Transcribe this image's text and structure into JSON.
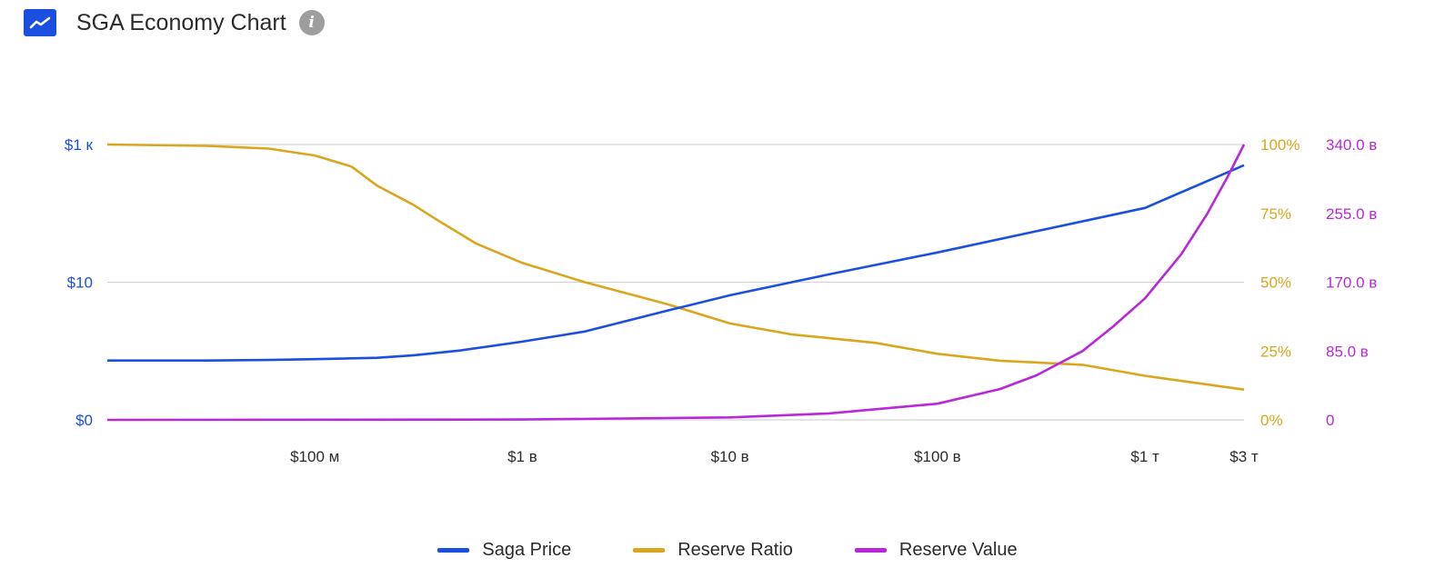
{
  "header": {
    "title": "SGA Economy Chart",
    "icon": "line-chart-icon",
    "info_icon": "info-icon",
    "info_glyph": "i"
  },
  "colors": {
    "price": "#1a4fe0",
    "ratio": "#d9a61d",
    "value": "#b828d8",
    "grid": "#d4d4d4"
  },
  "chart_data": {
    "type": "line",
    "title": "SGA Economy Chart",
    "x_axis": {
      "scale": "log",
      "unit": "USD market cap",
      "range": [
        10000000,
        3000000000000
      ],
      "tick_values": [
        100000000,
        1000000000,
        10000000000,
        100000000000,
        1000000000000,
        3000000000000
      ],
      "tick_labels": [
        "$100 м",
        "$1 в",
        "$10 в",
        "$100 в",
        "$1 т",
        "$3 т"
      ]
    },
    "y_axes": [
      {
        "id": "price",
        "side": "left",
        "scale": "log",
        "tick_values": [
          0,
          10,
          1000
        ],
        "tick_labels": [
          "$0",
          "$10",
          "$1 к"
        ],
        "color": "#1a4fe0"
      },
      {
        "id": "ratio",
        "side": "right",
        "range": [
          0,
          100
        ],
        "tick_values": [
          0,
          25,
          50,
          75,
          100
        ],
        "tick_labels": [
          "0%",
          "25%",
          "50%",
          "75%",
          "100%"
        ],
        "color": "#d9a61d"
      },
      {
        "id": "value",
        "side": "right",
        "range": [
          0,
          340000000000
        ],
        "tick_values": [
          0,
          85000000000,
          170000000000,
          255000000000,
          340000000000
        ],
        "tick_labels": [
          "0",
          "85.0 в",
          "170.0 в",
          "255.0 в",
          "340.0 в"
        ],
        "color": "#b828d8"
      }
    ],
    "grid": true,
    "legend_position": "bottom",
    "series": [
      {
        "name": "Saga Price",
        "axis": "price",
        "color": "#1a4fe0",
        "x": [
          10000000,
          30000000,
          60000000,
          100000000,
          200000000,
          300000000,
          500000000,
          1000000000,
          2000000000,
          5000000000,
          10000000000,
          30000000000,
          100000000000,
          300000000000,
          1000000000000,
          3000000000000
        ],
        "y": [
          1.4,
          1.4,
          1.42,
          1.45,
          1.5,
          1.6,
          1.8,
          2.25,
          2.9,
          4.9,
          7.2,
          13,
          27,
          55,
          120,
          500
        ]
      },
      {
        "name": "Reserve Ratio",
        "axis": "ratio",
        "color": "#d9a61d",
        "x": [
          10000000,
          30000000,
          60000000,
          100000000,
          150000000,
          200000000,
          300000000,
          400000000,
          600000000,
          1000000000,
          2000000000,
          5000000000,
          10000000000,
          20000000000,
          50000000000,
          100000000000,
          200000000000,
          500000000000,
          1000000000000,
          3000000000000
        ],
        "y": [
          100,
          99.5,
          98.5,
          96,
          92,
          85,
          78,
          72,
          64,
          57,
          50,
          42,
          35,
          31,
          28,
          24,
          21.5,
          20,
          16,
          11
        ]
      },
      {
        "name": "Reserve Value",
        "axis": "value",
        "color": "#b828d8",
        "x": [
          10000000,
          1000000000,
          10000000000,
          30000000000,
          100000000000,
          200000000000,
          300000000000,
          500000000000,
          700000000000,
          1000000000000,
          1500000000000,
          2000000000000,
          2500000000000,
          3000000000000
        ],
        "y": [
          0,
          500000000,
          3000000000,
          8000000000,
          20000000000,
          38000000000,
          55000000000,
          85000000000,
          115000000000,
          150000000000,
          205000000000,
          255000000000,
          300000000000,
          340000000000
        ]
      }
    ]
  }
}
